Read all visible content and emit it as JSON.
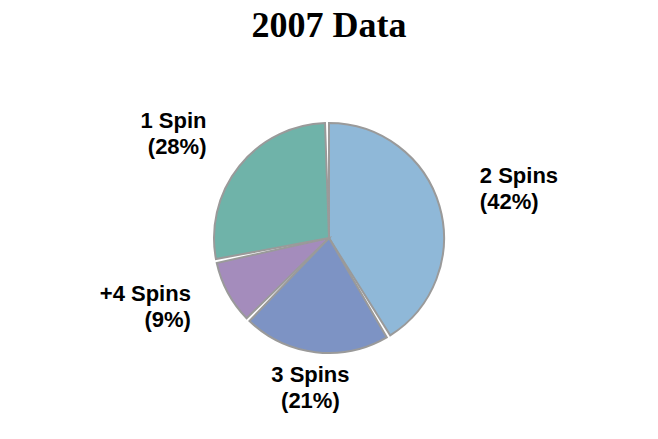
{
  "chart_data": {
    "type": "pie",
    "title": "2007 Data",
    "categories": [
      "2 Spins",
      "3 Spins",
      "+4 Spins",
      "1 Spin"
    ],
    "values": [
      42,
      21,
      9,
      28
    ],
    "value_labels": [
      "(42%)",
      "(21%)",
      "(9%)",
      "(28%)"
    ],
    "colors": [
      "#8fb8d8",
      "#7d93c4",
      "#a48cbc",
      "#6fb3a9"
    ],
    "data_labels": true
  }
}
